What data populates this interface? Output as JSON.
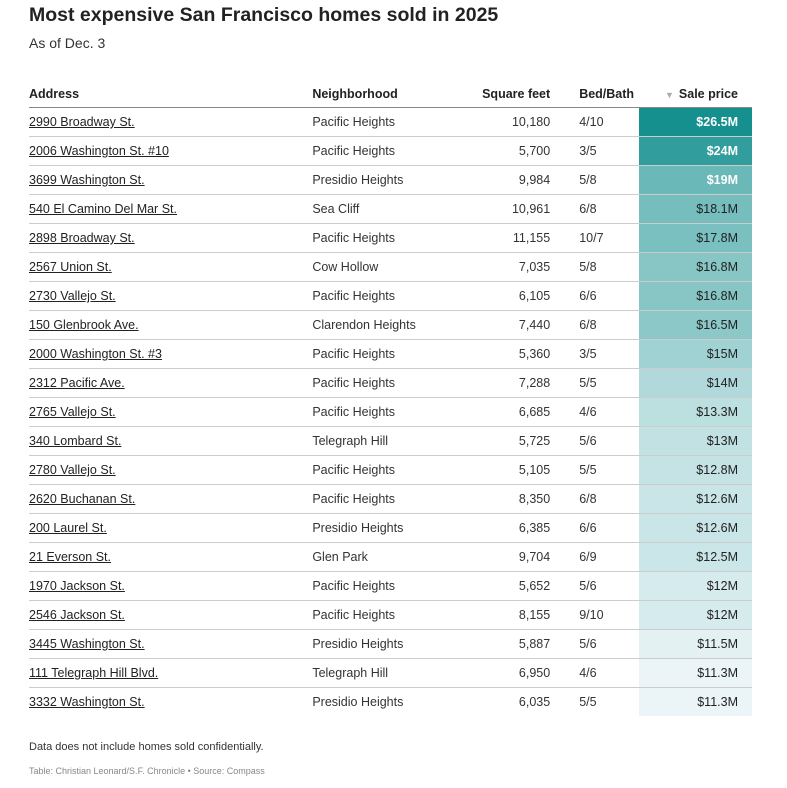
{
  "title": "Most expensive San Francisco homes sold in 2025",
  "subtitle": "As of Dec. 3",
  "note": "Data does not include homes sold confidentially.",
  "credit": "Table: Christian Leonard/S.F. Chronicle • Source: Compass",
  "colors": {
    "low": "#ebf5f7",
    "high": "#16908f"
  },
  "chart_data": {
    "type": "table",
    "columns": [
      "Address",
      "Neighborhood",
      "Square feet",
      "Bed/Bath",
      "Sale price"
    ],
    "sort": {
      "column": "Sale price",
      "direction": "descending",
      "icon": "sort-down-triangle-icon"
    },
    "rows": [
      [
        "2990 Broadway St.",
        "Pacific Heights",
        "10,180",
        "4/10",
        "$26.5M"
      ],
      [
        "2006 Washington St. #10",
        "Pacific Heights",
        "5,700",
        "3/5",
        "$24M"
      ],
      [
        "3699 Washington St.",
        "Presidio Heights",
        "9,984",
        "5/8",
        "$19M"
      ],
      [
        "540 El Camino Del Mar St.",
        "Sea Cliff",
        "10,961",
        "6/8",
        "$18.1M"
      ],
      [
        "2898 Broadway St.",
        "Pacific Heights",
        "11,155",
        "10/7",
        "$17.8M"
      ],
      [
        "2567 Union St.",
        "Cow Hollow",
        "7,035",
        "5/8",
        "$16.8M"
      ],
      [
        "2730 Vallejo St.",
        "Pacific Heights",
        "6,105",
        "6/6",
        "$16.8M"
      ],
      [
        "150 Glenbrook Ave.",
        "Clarendon Heights",
        "7,440",
        "6/8",
        "$16.5M"
      ],
      [
        "2000 Washington St. #3",
        "Pacific Heights",
        "5,360",
        "3/5",
        "$15M"
      ],
      [
        "2312 Pacific Ave.",
        "Pacific Heights",
        "7,288",
        "5/5",
        "$14M"
      ],
      [
        "2765 Vallejo St.",
        "Pacific Heights",
        "6,685",
        "4/6",
        "$13.3M"
      ],
      [
        "340 Lombard St.",
        "Telegraph Hill",
        "5,725",
        "5/6",
        "$13M"
      ],
      [
        "2780 Vallejo St.",
        "Pacific Heights",
        "5,105",
        "5/5",
        "$12.8M"
      ],
      [
        "2620 Buchanan St.",
        "Pacific Heights",
        "8,350",
        "6/8",
        "$12.6M"
      ],
      [
        "200 Laurel St.",
        "Presidio Heights",
        "6,385",
        "6/6",
        "$12.6M"
      ],
      [
        "21 Everson St.",
        "Glen Park",
        "9,704",
        "6/9",
        "$12.5M"
      ],
      [
        "1970 Jackson St.",
        "Pacific Heights",
        "5,652",
        "5/6",
        "$12M"
      ],
      [
        "2546 Jackson St.",
        "Pacific Heights",
        "8,155",
        "9/10",
        "$12M"
      ],
      [
        "3445 Washington St.",
        "Presidio Heights",
        "5,887",
        "5/6",
        "$11.5M"
      ],
      [
        "111 Telegraph Hill Blvd.",
        "Telegraph Hill",
        "6,950",
        "4/6",
        "$11.3M"
      ],
      [
        "3332 Washington St.",
        "Presidio Heights",
        "6,035",
        "5/5",
        "$11.3M"
      ]
    ],
    "sale_price_millions": [
      26.5,
      24,
      19,
      18.1,
      17.8,
      16.8,
      16.8,
      16.5,
      15,
      14,
      13.3,
      13,
      12.8,
      12.6,
      12.6,
      12.5,
      12,
      12,
      11.5,
      11.3,
      11.3
    ]
  }
}
